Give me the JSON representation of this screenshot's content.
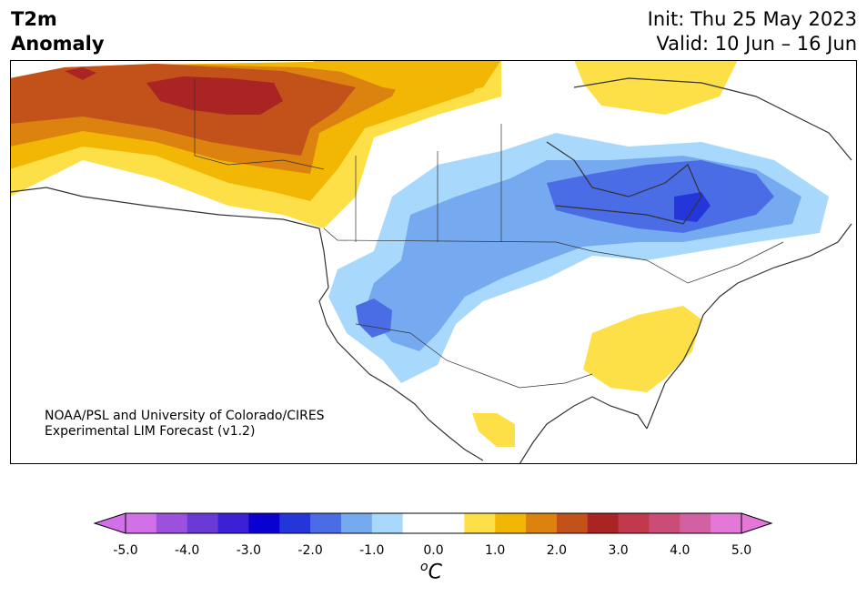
{
  "header": {
    "variable": "T2m",
    "quantity": "Anomaly",
    "init": "Init: Thu 25 May 2023",
    "valid": "Valid: 10 Jun – 16 Jun"
  },
  "credit": {
    "line1": "NOAA/PSL and University of Colorado/CIRES",
    "line2": "Experimental LIM Forecast (v1.2)"
  },
  "colorbar": {
    "unit_base": "C",
    "unit_sup": "o",
    "ticks": [
      "-5.0",
      "-4.0",
      "-3.0",
      "-2.0",
      "-1.0",
      "0.0",
      "1.0",
      "2.0",
      "3.0",
      "4.0",
      "5.0"
    ],
    "colors": [
      "#d270e8",
      "#9c50de",
      "#6a3ad6",
      "#3b1fd4",
      "#0a00cf",
      "#2436da",
      "#4a6ce4",
      "#76aaf0",
      "#a8d8fb",
      "#ffffff",
      "#ffffff",
      "#fde047",
      "#f2b705",
      "#db820f",
      "#c2521a",
      "#ab2424",
      "#c2384c",
      "#cc4c78",
      "#d460a4",
      "#e378d8"
    ],
    "under_color": "#d270e8",
    "over_color": "#e378d8"
  },
  "legend_palette": {
    "warm_1": "#fde047",
    "warm_2": "#f2b705",
    "warm_3": "#db820f",
    "warm_4": "#c2521a",
    "warm_5": "#ab2424",
    "cool_1": "#a8d8fb",
    "cool_2": "#76aaf0",
    "cool_3": "#4a6ce4",
    "cool_4": "#2436da"
  }
}
